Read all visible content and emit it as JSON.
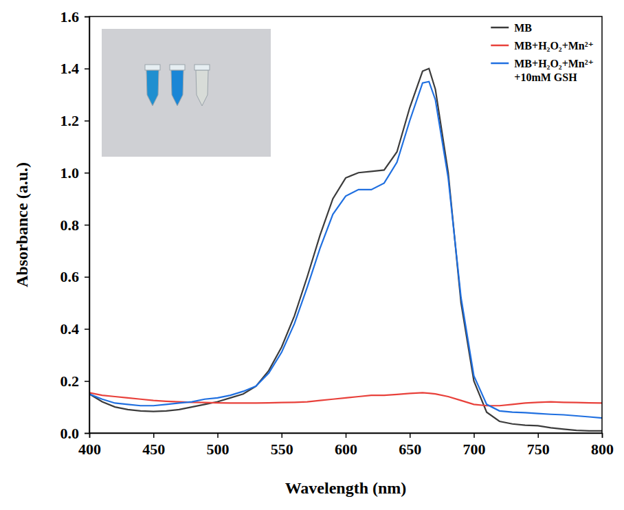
{
  "chart_data": {
    "type": "line",
    "x_label": "Wavelength (nm)",
    "y_label": "Absorbance (a.u.)",
    "x": [
      400,
      410,
      420,
      430,
      440,
      450,
      460,
      470,
      480,
      490,
      500,
      510,
      520,
      530,
      540,
      550,
      560,
      570,
      580,
      590,
      600,
      610,
      620,
      630,
      640,
      650,
      660,
      665,
      670,
      680,
      690,
      700,
      710,
      720,
      730,
      740,
      750,
      760,
      770,
      780,
      790,
      800
    ],
    "series": [
      {
        "name": "MB",
        "color": "#3b3b3b",
        "values": [
          0.15,
          0.12,
          0.1,
          0.09,
          0.085,
          0.083,
          0.085,
          0.09,
          0.1,
          0.11,
          0.12,
          0.135,
          0.15,
          0.18,
          0.24,
          0.33,
          0.45,
          0.6,
          0.76,
          0.9,
          0.98,
          1.0,
          1.005,
          1.01,
          1.08,
          1.25,
          1.39,
          1.4,
          1.32,
          1.0,
          0.5,
          0.2,
          0.08,
          0.045,
          0.035,
          0.03,
          0.028,
          0.02,
          0.015,
          0.01,
          0.008,
          0.008
        ]
      },
      {
        "name": "MB+H₂O₂+Mn²⁺",
        "color": "#e8403a",
        "values": [
          0.155,
          0.145,
          0.14,
          0.135,
          0.13,
          0.125,
          0.122,
          0.12,
          0.118,
          0.117,
          0.116,
          0.115,
          0.115,
          0.115,
          0.116,
          0.117,
          0.118,
          0.12,
          0.125,
          0.13,
          0.135,
          0.14,
          0.145,
          0.145,
          0.148,
          0.152,
          0.155,
          0.153,
          0.15,
          0.14,
          0.125,
          0.11,
          0.105,
          0.105,
          0.11,
          0.115,
          0.118,
          0.12,
          0.118,
          0.117,
          0.116,
          0.115
        ]
      },
      {
        "name": "MB+H₂O₂+Mn²⁺ +10mM GSH",
        "color": "#1f6fe0",
        "values": [
          0.15,
          0.13,
          0.115,
          0.11,
          0.105,
          0.105,
          0.11,
          0.115,
          0.12,
          0.13,
          0.135,
          0.145,
          0.16,
          0.18,
          0.23,
          0.31,
          0.42,
          0.56,
          0.71,
          0.84,
          0.91,
          0.935,
          0.935,
          0.96,
          1.04,
          1.2,
          1.345,
          1.35,
          1.28,
          0.98,
          0.52,
          0.22,
          0.11,
          0.085,
          0.08,
          0.078,
          0.075,
          0.072,
          0.07,
          0.066,
          0.062,
          0.058
        ]
      }
    ],
    "xlim": [
      400,
      800
    ],
    "xticks": [
      400,
      450,
      500,
      550,
      600,
      650,
      700,
      750,
      800
    ],
    "ylim": [
      0,
      1.6
    ],
    "yticks": [
      {
        "value": 0,
        "label": "0.0"
      },
      0.2,
      0.4,
      0.6,
      0.8,
      {
        "value": 1,
        "label": "1.0"
      },
      1.2,
      1.4,
      1.6
    ],
    "grid": false,
    "legend": "upper right"
  }
}
